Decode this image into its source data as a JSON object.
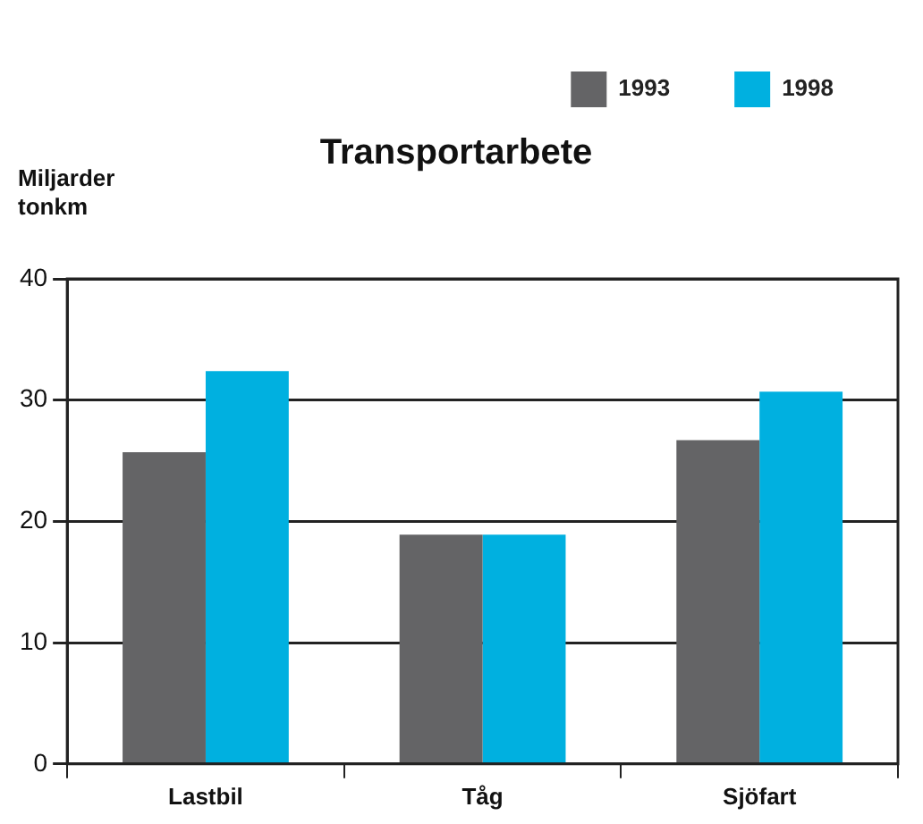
{
  "chart_data": {
    "type": "bar",
    "title": "Transportarbete",
    "ylabel": "Miljarder tonkm",
    "categories": [
      "Lastbil",
      "Tåg",
      "Sjöfart"
    ],
    "series": [
      {
        "name": "1993",
        "color": "#646466",
        "values": [
          25.7,
          18.9,
          26.7
        ]
      },
      {
        "name": "1998",
        "color": "#00b0e0",
        "values": [
          32.4,
          18.9,
          30.7
        ]
      }
    ],
    "ylim": [
      0,
      40
    ],
    "yticks": [
      0,
      10,
      20,
      30,
      40
    ],
    "grid": "y",
    "legend": "top right"
  }
}
